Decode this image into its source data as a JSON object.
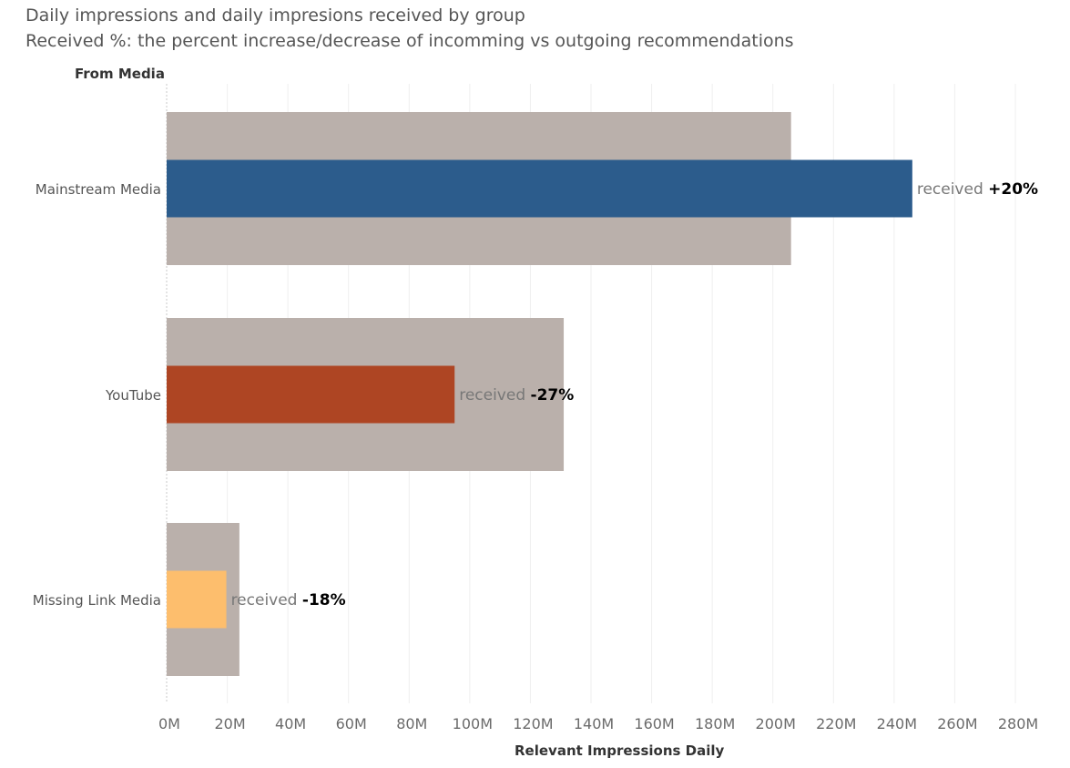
{
  "title": "Daily impressions and daily impresions received by group",
  "subtitle": "Received %: the percent increase/decrease of incomming vs  outgoing recommendations",
  "colors": {
    "outgoing": "#bab0ab",
    "mainstream": "#2c5c8c",
    "youtube": "#ae4523",
    "missing": "#fdbe6d",
    "grid": "#efefef"
  },
  "chart_data": {
    "type": "bar",
    "orientation": "horizontal",
    "row_header": "From Media",
    "xlabel": "Relevant Impressions Daily",
    "xlim": [
      0,
      280000000
    ],
    "xticks": [
      "0M",
      "20M",
      "40M",
      "60M",
      "80M",
      "100M",
      "120M",
      "140M",
      "160M",
      "180M",
      "200M",
      "220M",
      "240M",
      "260M",
      "280M"
    ],
    "categories": [
      "Mainstream Media",
      "YouTube",
      "Missing Link Media"
    ],
    "outgoing_values": [
      206000000,
      131000000,
      24000000
    ],
    "received_values": [
      246000000,
      95000000,
      19700000
    ],
    "received_label_prefix": "received",
    "received_pct_labels": [
      "+20%",
      "-27%",
      "-18%"
    ],
    "grid": true
  }
}
